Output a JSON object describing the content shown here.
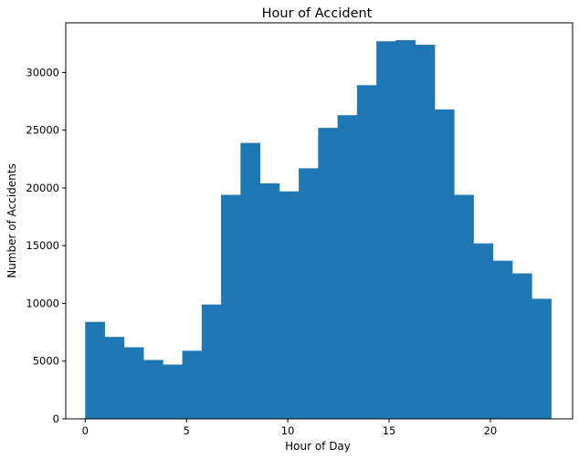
{
  "chart_data": {
    "type": "bar",
    "title": "Hour of Accident",
    "xlabel": "Hour of Day",
    "ylabel": "Number of Accidents",
    "xlim": [
      -0.96,
      24.06
    ],
    "ylim": [
      0,
      34300
    ],
    "xticks": [
      0,
      5,
      10,
      15,
      20
    ],
    "yticks": [
      0,
      5000,
      10000,
      15000,
      20000,
      25000,
      30000
    ],
    "bin_edges": [
      0,
      0.9583,
      1.9167,
      2.875,
      3.8333,
      4.7917,
      5.75,
      6.7083,
      7.6667,
      8.625,
      9.5833,
      10.5417,
      11.5,
      12.4583,
      13.4167,
      14.375,
      15.3333,
      16.2917,
      17.25,
      18.2083,
      19.1667,
      20.125,
      21.0833,
      22.0417,
      23
    ],
    "values": [
      8400,
      7100,
      6200,
      5100,
      4700,
      5900,
      9900,
      19400,
      23900,
      20400,
      19700,
      21700,
      25200,
      26300,
      28900,
      32700,
      32800,
      32400,
      26800,
      19400,
      15200,
      13700,
      12600,
      10400
    ],
    "color": "#1f77b4",
    "grid": false
  }
}
